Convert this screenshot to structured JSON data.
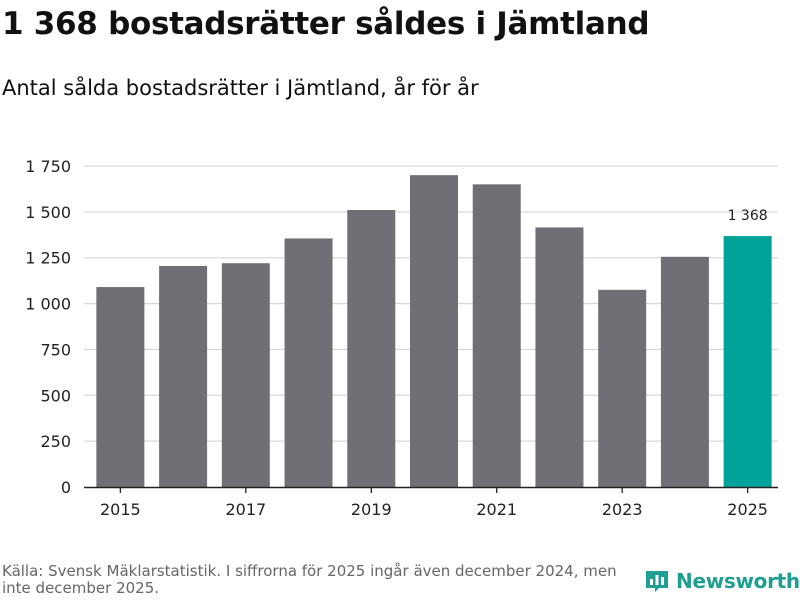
{
  "header": {
    "title": "1 368 bostadsrätter såldes i Jämtland",
    "subtitle": "Antal sålda bostadsrätter i Jämtland, år för år"
  },
  "chart_data": {
    "type": "bar",
    "title": "1 368 bostadsrätter såldes i Jämtland",
    "subtitle": "Antal sålda bostadsrätter i Jämtland, år för år",
    "xlabel": "",
    "ylabel": "",
    "categories": [
      "2015",
      "2016",
      "2017",
      "2018",
      "2019",
      "2020",
      "2021",
      "2022",
      "2023",
      "2024",
      "2025"
    ],
    "values": [
      1090,
      1205,
      1220,
      1355,
      1510,
      1700,
      1650,
      1415,
      1075,
      1255,
      1368
    ],
    "ylim": [
      0,
      1750
    ],
    "yticks": [
      0,
      250,
      500,
      750,
      1000,
      1250,
      1500,
      1750
    ],
    "ytick_labels": [
      "0",
      "250",
      "500",
      "750",
      "1 000",
      "1 250",
      "1 500",
      "1 750"
    ],
    "xtick_labels": [
      "2015",
      "2017",
      "2019",
      "2021",
      "2023",
      "2025"
    ],
    "grid": true,
    "bar_color": "#706f75",
    "highlight_color": "#00a39a",
    "highlight_category": "2025",
    "data_labels": [
      {
        "category": "2025",
        "text": "1 368"
      }
    ]
  },
  "footer": {
    "source": "Källa: Svensk Mäklarstatistik. I siffrorna för 2025 ingår även december 2024, men inte december 2025."
  },
  "logo": {
    "text": "Newsworthy",
    "icon": "newsworthy-chart-icon",
    "color": "#1f9e92"
  }
}
